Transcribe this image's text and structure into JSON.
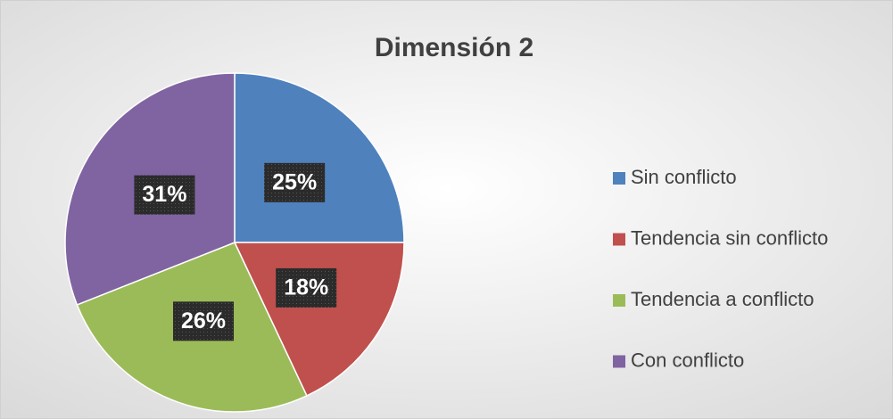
{
  "chart_data": {
    "type": "pie",
    "title": "Dimensión 2",
    "categories": [
      "Sin conflicto",
      "Tendencia sin conflicto",
      "Tendencia a conflicto",
      "Con conflicto"
    ],
    "values": [
      25,
      18,
      26,
      31
    ],
    "value_labels": [
      "25%",
      "18%",
      "26%",
      "31%"
    ],
    "colors": [
      "#4f81bd",
      "#c0504d",
      "#9bbb59",
      "#8064a2"
    ],
    "legend": "right"
  }
}
